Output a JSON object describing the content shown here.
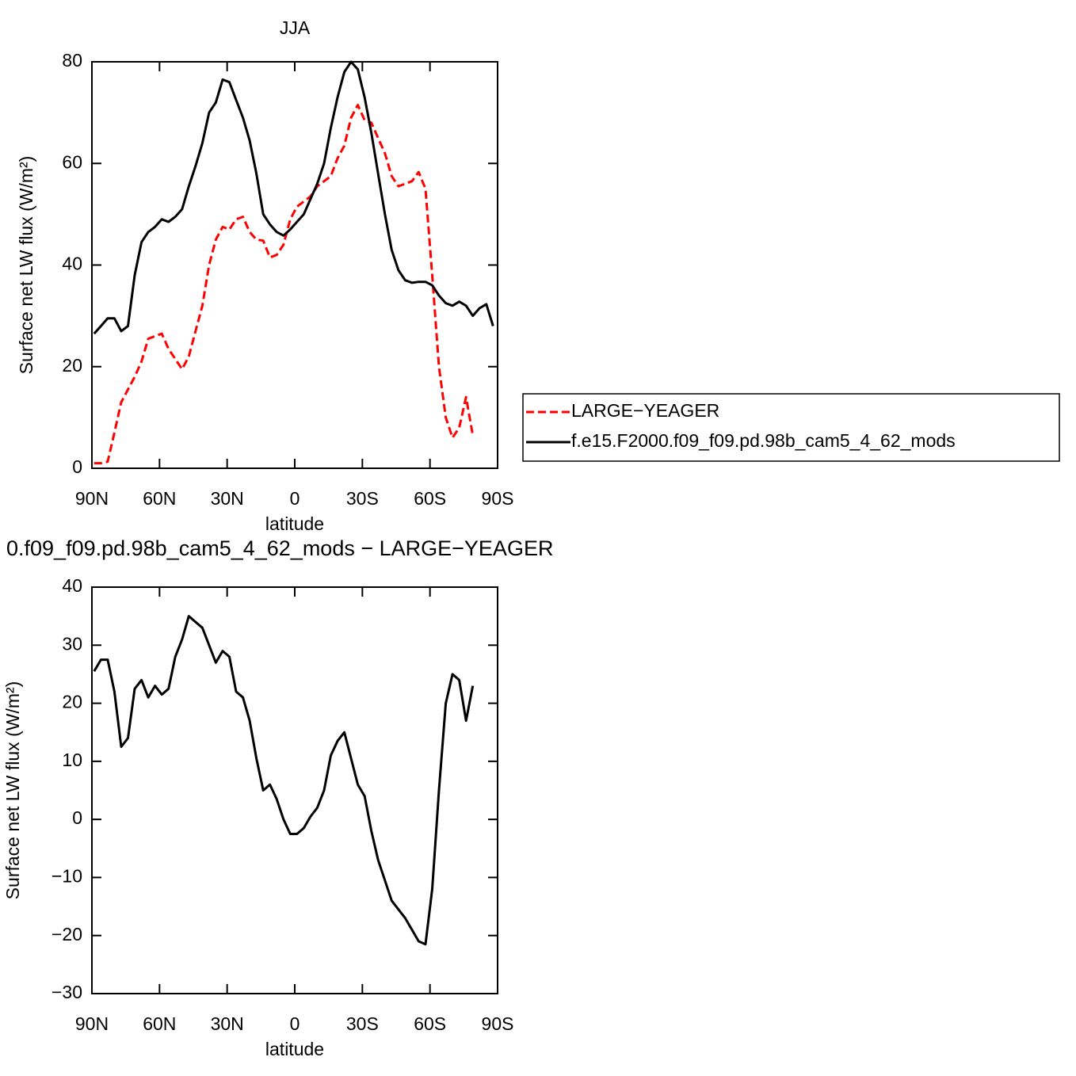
{
  "chart_data": [
    {
      "type": "line",
      "title": "JJA",
      "ylabel": "Surface net LW flux (W/m²)",
      "xlabel": "latitude",
      "xlim": [
        90,
        -90
      ],
      "ylim": [
        0,
        80
      ],
      "xticks": [
        {
          "value": 90,
          "label": "90N"
        },
        {
          "value": 60,
          "label": "60N"
        },
        {
          "value": 30,
          "label": "30N"
        },
        0,
        {
          "value": -30,
          "label": "30S"
        },
        {
          "value": -60,
          "label": "60S"
        },
        {
          "value": -90,
          "label": "90S"
        }
      ],
      "yticks": [
        0,
        20,
        40,
        60,
        80
      ],
      "legend": "right",
      "x": [
        89,
        86,
        83,
        80,
        77,
        74,
        71,
        68,
        65,
        62,
        59,
        56,
        53,
        50,
        47,
        44,
        41,
        38,
        35,
        32,
        29,
        26,
        23,
        20,
        17,
        14,
        11,
        8,
        5,
        2,
        -1,
        -4,
        -7,
        -10,
        -13,
        -16,
        -19,
        -22,
        -25,
        -28,
        -31,
        -34,
        -37,
        -40,
        -43,
        -46,
        -49,
        -52,
        -55,
        -58,
        -61,
        -64,
        -67,
        -70,
        -73,
        -76,
        -79,
        -82,
        -85,
        -88
      ],
      "series": [
        {
          "name": "LARGE−YEAGER",
          "color": "#ff0000",
          "style": "dashed",
          "values": [
            1,
            1,
            1.3,
            7,
            13,
            15.5,
            18,
            21,
            25.5,
            26,
            26.5,
            23.5,
            21.5,
            19.5,
            22,
            27,
            32,
            40,
            45,
            47.5,
            47,
            49,
            49.5,
            46.5,
            45,
            44.8,
            41.5,
            42,
            44,
            49,
            51.5,
            52.5,
            53.5,
            55.5,
            56.5,
            57.5,
            61,
            63.5,
            69,
            71.5,
            68.5,
            68,
            65,
            62,
            57.5,
            55.5,
            56,
            56.5,
            58.3,
            55,
            38,
            20,
            10,
            6,
            8,
            14,
            6.5,
            null,
            null,
            null
          ]
        },
        {
          "name": "f.e15.F2000.f09_f09.pd.98b_cam5_4_62_mods",
          "color": "#000000",
          "style": "solid",
          "values": [
            26.5,
            28,
            29.5,
            29.5,
            27,
            28,
            38,
            44.5,
            46.5,
            47.5,
            49,
            48.5,
            49.5,
            51,
            55.5,
            59.5,
            64,
            70,
            72,
            76.5,
            76,
            72.5,
            69,
            64.5,
            58,
            50,
            48,
            46.5,
            45.8,
            47,
            48.5,
            50,
            53,
            56,
            60,
            67,
            73,
            78,
            80,
            78.5,
            73,
            66,
            58,
            50,
            43,
            39,
            37,
            36.5,
            36.7,
            36.7,
            36,
            34,
            32.5,
            32,
            32.8,
            32,
            30,
            31.5,
            32.3,
            28
          ]
        }
      ]
    },
    {
      "type": "line",
      "title": "0.f09_f09.pd.98b_cam5_4_62_mods − LARGE−YEAGER",
      "ylabel": "Surface net LW flux (W/m²)",
      "xlabel": "latitude",
      "xlim": [
        90,
        -90
      ],
      "ylim": [
        -30,
        40
      ],
      "xticks": [
        {
          "value": 90,
          "label": "90N"
        },
        {
          "value": 60,
          "label": "60N"
        },
        {
          "value": 30,
          "label": "30N"
        },
        0,
        {
          "value": -30,
          "label": "30S"
        },
        {
          "value": -60,
          "label": "60S"
        },
        {
          "value": -90,
          "label": "90S"
        }
      ],
      "yticks": [
        {
          "value": -30,
          "label": "−30"
        },
        {
          "value": -20,
          "label": "−20"
        },
        {
          "value": -10,
          "label": "−10"
        },
        0,
        10,
        20,
        30,
        40
      ],
      "x": [
        89,
        86,
        83,
        80,
        77,
        74,
        71,
        68,
        65,
        62,
        59,
        56,
        53,
        50,
        47,
        44,
        41,
        38,
        35,
        32,
        29,
        26,
        23,
        20,
        17,
        14,
        11,
        8,
        5,
        2,
        -1,
        -4,
        -7,
        -10,
        -13,
        -16,
        -19,
        -22,
        -25,
        -28,
        -31,
        -34,
        -37,
        -40,
        -43,
        -46,
        -49,
        -52,
        -55,
        -58,
        -61,
        -64,
        -67,
        -70,
        -73,
        -76,
        -79,
        -82,
        -85,
        -88
      ],
      "series": [
        {
          "color": "#000000",
          "style": "solid",
          "values": [
            25.5,
            27.5,
            27.5,
            22,
            12.5,
            14,
            22.5,
            24,
            21,
            23,
            21.5,
            22.5,
            28,
            31,
            35,
            34,
            33,
            30,
            27,
            29,
            28,
            22,
            21,
            17,
            10.5,
            5,
            6,
            3.5,
            0,
            -2.5,
            -2.5,
            -1.5,
            0.5,
            2,
            5,
            11,
            13.5,
            15,
            10.5,
            6,
            4,
            -2,
            -7,
            -10.5,
            -14,
            -15.5,
            -17,
            -19,
            -21,
            -21.5,
            -12,
            5,
            20,
            25,
            24,
            17,
            23,
            null,
            null,
            null
          ]
        }
      ]
    }
  ]
}
